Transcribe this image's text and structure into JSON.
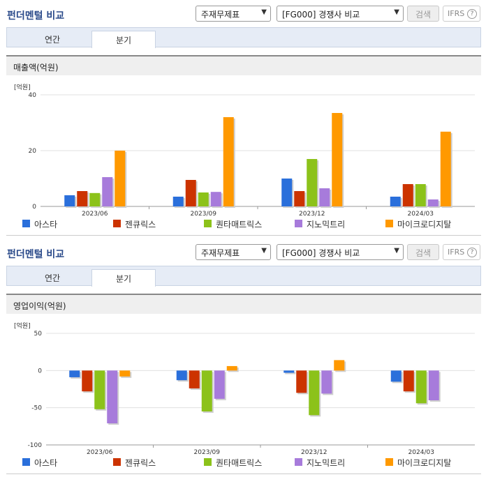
{
  "panels": [
    {
      "title": "펀더멘털 비교",
      "select_metric": "주재무제표",
      "select_peer": "[FG000] 경쟁사 비교",
      "search_label": "검색",
      "ifrs_label": "IFRS",
      "help_glyph": "?",
      "tabs": [
        "연간",
        "분기"
      ],
      "active_tab": "분기",
      "section_title": "매출액(억원)",
      "unit": "[억원]"
    },
    {
      "title": "펀더멘털 비교",
      "select_metric": "주재무제표",
      "select_peer": "[FG000] 경쟁사 비교",
      "search_label": "검색",
      "ifrs_label": "IFRS",
      "help_glyph": "?",
      "tabs": [
        "연간",
        "분기"
      ],
      "active_tab": "분기",
      "section_title": "영업이익(억원)",
      "unit": "[억원]"
    }
  ],
  "chart_data": [
    {
      "type": "bar",
      "title": "매출액(억원)",
      "categories": [
        "2023/06",
        "2023/09",
        "2023/12",
        "2024/03"
      ],
      "ylim": [
        0,
        40
      ],
      "yticks": [
        0,
        20,
        40
      ],
      "grid": true,
      "legend": "bottom",
      "series": [
        {
          "name": "아스타",
          "color": "#2a6fdb",
          "values": [
            4,
            3.5,
            10,
            3.5
          ]
        },
        {
          "name": "젠큐릭스",
          "color": "#cc3300",
          "values": [
            5.5,
            9.5,
            5.5,
            8
          ]
        },
        {
          "name": "퀀타매트릭스",
          "color": "#8cc21a",
          "values": [
            4.8,
            5,
            17,
            8
          ]
        },
        {
          "name": "지노믹트리",
          "color": "#a77bdb",
          "values": [
            10.5,
            5.2,
            6.5,
            2.5
          ]
        },
        {
          "name": "마이크로디지탈",
          "color": "#ff9900",
          "values": [
            20,
            32,
            33.5,
            26.8
          ]
        }
      ]
    },
    {
      "type": "bar",
      "title": "영업이익(억원)",
      "categories": [
        "2023/06",
        "2023/09",
        "2023/12",
        "2024/03"
      ],
      "ylim": [
        -100,
        50
      ],
      "yticks": [
        -100,
        -50,
        0,
        50
      ],
      "grid": true,
      "legend": "bottom",
      "series": [
        {
          "name": "아스타",
          "color": "#2a6fdb",
          "values": [
            -9,
            -13,
            -3,
            -15
          ]
        },
        {
          "name": "젠큐릭스",
          "color": "#cc3300",
          "values": [
            -28,
            -24,
            -30,
            -28
          ]
        },
        {
          "name": "퀀타매트릭스",
          "color": "#8cc21a",
          "values": [
            -52,
            -55,
            -60,
            -44
          ]
        },
        {
          "name": "지노믹트리",
          "color": "#a77bdb",
          "values": [
            -71,
            -38,
            -31,
            -40
          ]
        },
        {
          "name": "마이크로디지탈",
          "color": "#ff9900",
          "values": [
            -8,
            6,
            14,
            0
          ]
        }
      ]
    }
  ]
}
